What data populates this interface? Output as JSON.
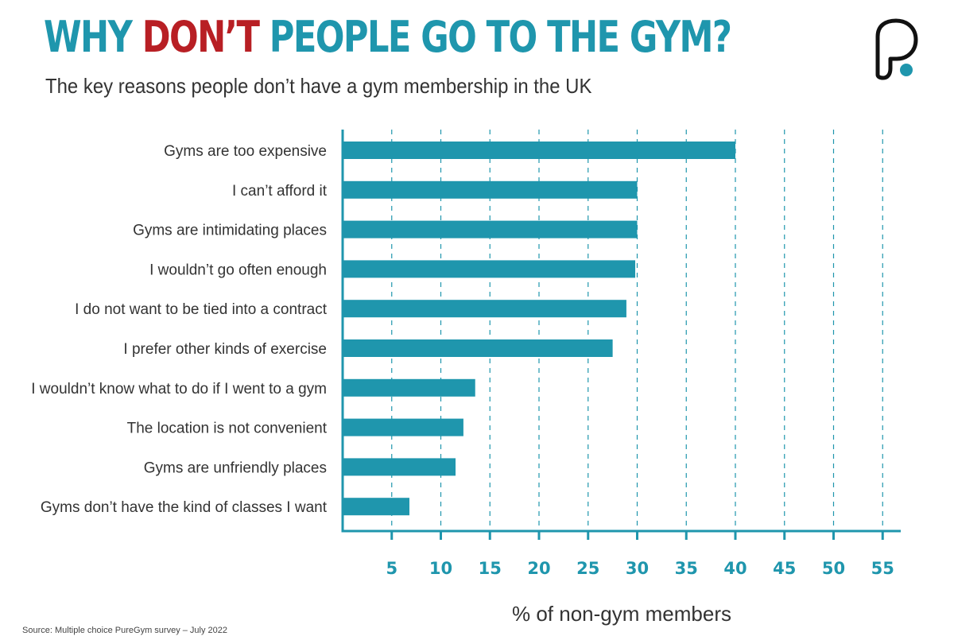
{
  "header": {
    "title_before": "WHY ",
    "title_highlight": "DON’T",
    "title_after": " PEOPLE GO TO THE GYM?",
    "subtitle": "The key reasons people don’t have a gym membership in the UK"
  },
  "colors": {
    "title": "#1f96ad",
    "highlight": "#b81f24",
    "bar": "#1f96ad",
    "axis": "#1f96ad",
    "tick_label": "#1f96ad",
    "category_text": "#333333",
    "logo": "#111111",
    "logo_dot": "#1f96ad"
  },
  "logo": {
    "icon": "puregym-logo-icon"
  },
  "footer": {
    "source": "Source: Multiple choice PureGym survey – July 2022"
  },
  "chart_data": {
    "type": "bar",
    "orientation": "horizontal",
    "categories": [
      "Gyms are too expensive",
      "I can’t afford it",
      "Gyms are intimidating places",
      "I wouldn’t go often enough",
      "I do not want to be tied into a contract",
      "I prefer other kinds of exercise",
      "I wouldn’t know what to do if I went to a gym",
      "The location is not convenient",
      "Gyms are unfriendly places",
      "Gyms don’t have the kind of classes I want"
    ],
    "values": [
      40,
      30,
      30,
      29.8,
      28.9,
      27.5,
      13.5,
      12.3,
      11.5,
      6.8
    ],
    "xlabel": "% of non-gym members",
    "ylabel": "",
    "xlim": [
      0,
      56
    ],
    "ticks": [
      5,
      10,
      15,
      20,
      25,
      30,
      35,
      40,
      45,
      50,
      55
    ],
    "grid": "vertical dashed",
    "legend": "none"
  }
}
